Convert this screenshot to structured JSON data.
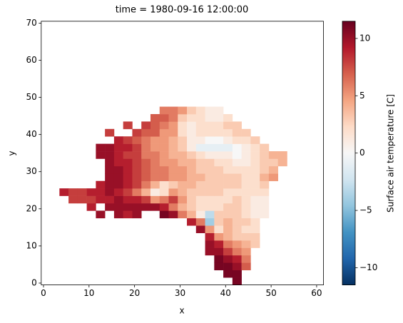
{
  "chart_data": {
    "type": "heatmap",
    "title": "time = 1980-09-16 12:00:00",
    "xlabel": "x",
    "ylabel": "y",
    "colorbar_label": "Surface air temperature [C]",
    "colormap": "RdBu_r",
    "xlim": [
      -0.5,
      61.5
    ],
    "ylim": [
      -0.5,
      70.5
    ],
    "xticks": [
      0,
      10,
      20,
      30,
      40,
      50,
      60
    ],
    "yticks": [
      0,
      10,
      20,
      30,
      40,
      50,
      60,
      70
    ],
    "clim": [
      -11.5,
      11.5
    ],
    "cticks": [
      {
        "value": -10,
        "label": "−10"
      },
      {
        "value": -5,
        "label": "−5"
      },
      0,
      5,
      10
    ],
    "x": [
      4.5,
      6.5,
      8.5,
      10.5,
      12.5,
      14.5,
      16.5,
      18.5,
      20.5,
      22.5,
      24.5,
      26.5,
      28.5,
      30.5,
      32.5,
      34.5,
      36.5,
      38.5,
      40.5,
      42.5,
      44.5,
      46.5,
      48.5,
      50.5,
      52.5
    ],
    "y": [
      0.5,
      2.5,
      4.5,
      6.5,
      8.5,
      10.5,
      12.5,
      14.5,
      16.5,
      18.5,
      20.5,
      22.5,
      24.5,
      26.5,
      28.5,
      30.5,
      32.5,
      34.5,
      36.5,
      38.5,
      40.5,
      42.5,
      44.5,
      46.5
    ],
    "z": [
      [
        null,
        null,
        null,
        null,
        null,
        null,
        null,
        null,
        null,
        null,
        null,
        null,
        null,
        null,
        null,
        null,
        null,
        null,
        null,
        11,
        null,
        null,
        null,
        null,
        null
      ],
      [
        null,
        null,
        null,
        null,
        null,
        null,
        null,
        null,
        null,
        null,
        null,
        null,
        null,
        null,
        null,
        null,
        null,
        null,
        11,
        11,
        null,
        null,
        null,
        null,
        null
      ],
      [
        null,
        null,
        null,
        null,
        null,
        null,
        null,
        null,
        null,
        null,
        null,
        null,
        null,
        null,
        null,
        null,
        null,
        11,
        11,
        10,
        7,
        null,
        null,
        null,
        null
      ],
      [
        null,
        null,
        null,
        null,
        null,
        null,
        null,
        null,
        null,
        null,
        null,
        null,
        null,
        null,
        null,
        null,
        null,
        11,
        10,
        9,
        6,
        null,
        null,
        null,
        null
      ],
      [
        null,
        null,
        null,
        null,
        null,
        null,
        null,
        null,
        null,
        null,
        null,
        null,
        null,
        null,
        null,
        null,
        10,
        10,
        8,
        6,
        5,
        null,
        null,
        null,
        null
      ],
      [
        null,
        null,
        null,
        null,
        null,
        null,
        null,
        null,
        null,
        null,
        null,
        null,
        null,
        null,
        null,
        null,
        10,
        9,
        6,
        5,
        4,
        3,
        null,
        null,
        null
      ],
      [
        null,
        null,
        null,
        null,
        null,
        null,
        null,
        null,
        null,
        null,
        null,
        null,
        null,
        null,
        null,
        null,
        9,
        5,
        4,
        3,
        3,
        3,
        null,
        null,
        null
      ],
      [
        null,
        null,
        null,
        null,
        null,
        null,
        null,
        null,
        null,
        null,
        null,
        null,
        null,
        null,
        null,
        10,
        5,
        2,
        4,
        3,
        2,
        2,
        null,
        null,
        null
      ],
      [
        null,
        null,
        null,
        null,
        null,
        null,
        null,
        null,
        null,
        null,
        null,
        null,
        null,
        null,
        9,
        6,
        -4,
        3,
        4,
        3,
        3,
        2,
        null,
        null,
        null
      ],
      [
        null,
        null,
        null,
        null,
        10,
        null,
        10,
        9,
        10,
        null,
        null,
        11,
        10,
        6,
        4,
        1,
        -3,
        3,
        3,
        3,
        2,
        1,
        1,
        null,
        null
      ],
      [
        null,
        null,
        null,
        9,
        null,
        10,
        10,
        10,
        10,
        10,
        10,
        9,
        6,
        4,
        3,
        2,
        2,
        2,
        3,
        3,
        2,
        1,
        1,
        null,
        null
      ],
      [
        null,
        8,
        8,
        8,
        9,
        9,
        10,
        9,
        9,
        8,
        5,
        6,
        8,
        5,
        3,
        2,
        2,
        2,
        2,
        3,
        2,
        1,
        1,
        null,
        null
      ],
      [
        9,
        8,
        8,
        9,
        9,
        10,
        9,
        8,
        6,
        4,
        1,
        2,
        5,
        4,
        3,
        3,
        3,
        3,
        2,
        2,
        2,
        2,
        2,
        null,
        null
      ],
      [
        null,
        null,
        null,
        null,
        9,
        10,
        10,
        9,
        8,
        6,
        4,
        2,
        3,
        4,
        4,
        3,
        3,
        3,
        3,
        3,
        2,
        2,
        3,
        null,
        null
      ],
      [
        null,
        null,
        null,
        null,
        null,
        10,
        10,
        9,
        8,
        7,
        6,
        6,
        5,
        5,
        4,
        4,
        3,
        3,
        3,
        3,
        2,
        2,
        4,
        5,
        null
      ],
      [
        null,
        null,
        null,
        null,
        null,
        10,
        10,
        9,
        8,
        7,
        6,
        6,
        5,
        5,
        4,
        3,
        3,
        3,
        2,
        2,
        2,
        2,
        3,
        4,
        null
      ],
      [
        null,
        null,
        null,
        null,
        null,
        10,
        9,
        9,
        8,
        7,
        6,
        5,
        5,
        4,
        4,
        3,
        3,
        2,
        2,
        1,
        1,
        2,
        3,
        3,
        4
      ],
      [
        null,
        null,
        null,
        null,
        10,
        10,
        9,
        8,
        8,
        6,
        6,
        5,
        4,
        4,
        3,
        2,
        1,
        1,
        1,
        0,
        1,
        2,
        3,
        4,
        4
      ],
      [
        null,
        null,
        null,
        null,
        10,
        10,
        9,
        9,
        8,
        6,
        5,
        5,
        4,
        3,
        1,
        -1,
        -1,
        -1,
        -1,
        0,
        1,
        2,
        3,
        null,
        null
      ],
      [
        null,
        null,
        null,
        null,
        null,
        null,
        9,
        8,
        7,
        6,
        5,
        5,
        4,
        3,
        1,
        1,
        0,
        0,
        1,
        2,
        2,
        3,
        null,
        null,
        null
      ],
      [
        null,
        null,
        null,
        null,
        null,
        8,
        null,
        null,
        8,
        7,
        7,
        5,
        5,
        2,
        1,
        2,
        2,
        2,
        2,
        3,
        3,
        null,
        null,
        null,
        null
      ],
      [
        null,
        null,
        null,
        null,
        null,
        null,
        null,
        8,
        null,
        8,
        7,
        6,
        5,
        2,
        1,
        2,
        2,
        2,
        3,
        3,
        null,
        null,
        null,
        null,
        null
      ],
      [
        null,
        null,
        null,
        null,
        null,
        null,
        null,
        null,
        null,
        null,
        7,
        7,
        6,
        3,
        2,
        2,
        1,
        1,
        2,
        null,
        null,
        null,
        null,
        null,
        null
      ],
      [
        null,
        null,
        null,
        null,
        null,
        null,
        null,
        null,
        null,
        null,
        null,
        6,
        6,
        5,
        3,
        2,
        1,
        1,
        null,
        null,
        null,
        null,
        null,
        null,
        null
      ]
    ]
  }
}
